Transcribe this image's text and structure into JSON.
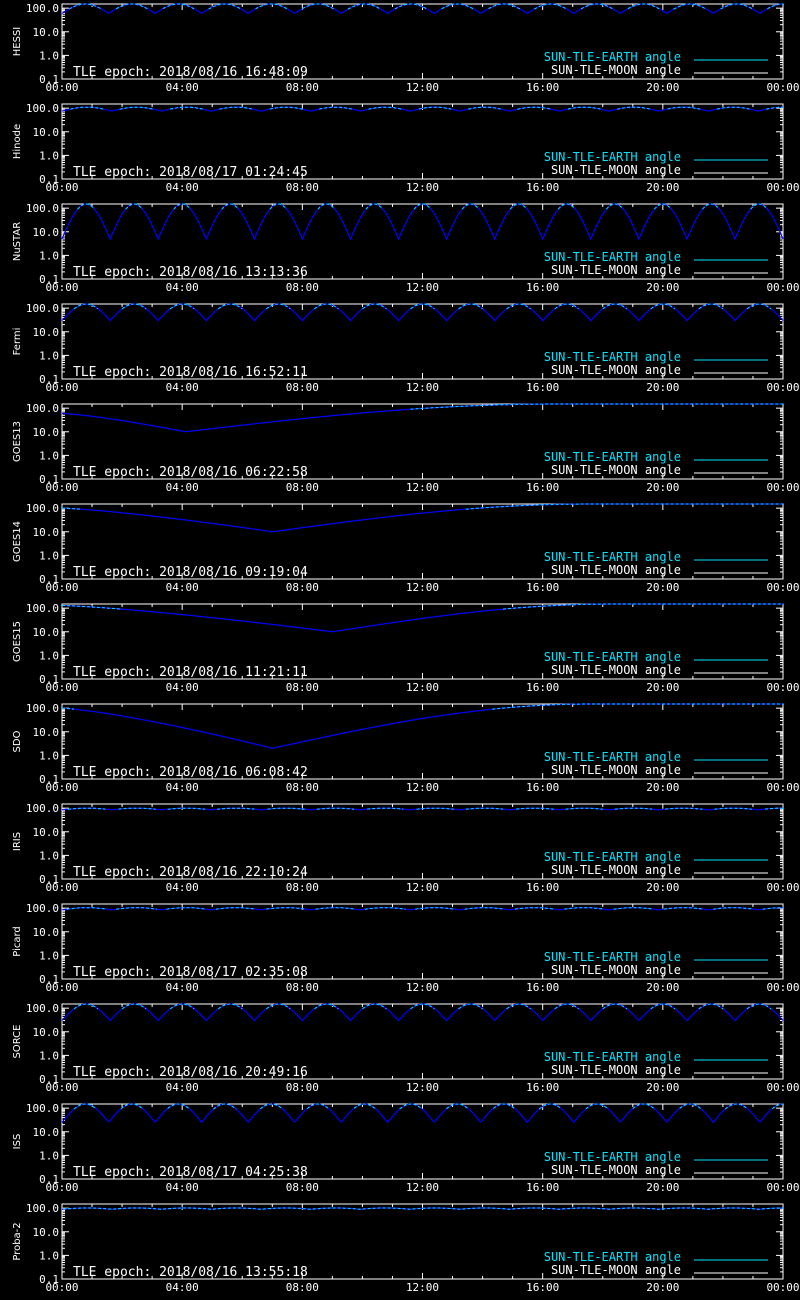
{
  "colors": {
    "background": "#000000",
    "axes": "#ffffff",
    "sun_earth": "#00e5ff",
    "sun_moon": "#ffffff",
    "curve": "#0000ff"
  },
  "chart_data": {
    "type": "line",
    "y_scale": "log",
    "y_ticks": [
      "100.0",
      "10.0",
      "1.0",
      "0.1"
    ],
    "x_ticks": [
      "00:00",
      "04:00",
      "08:00",
      "12:00",
      "16:00",
      "20:00",
      "00:00"
    ],
    "legend": [
      "SUN-TLE-EARTH angle",
      "SUN-TLE-MOON angle"
    ],
    "legend_position": "bottom-right",
    "panels": [
      {
        "name": "HESSI",
        "epoch": "TLE epoch: 2018/08/16 16:48:09",
        "pattern": "orbit",
        "n_orbits": 15.5,
        "ymin": 60,
        "ymax": 150
      },
      {
        "name": "Hinode",
        "epoch": "TLE epoch: 2018/08/17 01:24:45",
        "pattern": "orbit",
        "n_orbits": 14.5,
        "ymin": 75,
        "ymax": 110
      },
      {
        "name": "NuSTAR",
        "epoch": "TLE epoch: 2018/08/16 13:13:36",
        "pattern": "orbit",
        "n_orbits": 15,
        "ymin": 5,
        "ymax": 150
      },
      {
        "name": "Fermi",
        "epoch": "TLE epoch: 2018/08/16 16:52:11",
        "pattern": "orbit",
        "n_orbits": 15,
        "ymin": 30,
        "ymax": 150
      },
      {
        "name": "GOES13",
        "epoch": "TLE epoch: 2018/08/16 06:22:58",
        "pattern": "geo",
        "min_hour": 4.1,
        "min_value": 10,
        "start_value": 60,
        "max_value": 150
      },
      {
        "name": "GOES14",
        "epoch": "TLE epoch: 2018/08/16 09:19:04",
        "pattern": "geo",
        "min_hour": 7.0,
        "min_value": 10,
        "start_value": 100,
        "max_value": 150
      },
      {
        "name": "GOES15",
        "epoch": "TLE epoch: 2018/08/16 11:21:11",
        "pattern": "geo",
        "min_hour": 9.0,
        "min_value": 10,
        "start_value": 130,
        "max_value": 150
      },
      {
        "name": "SDO",
        "epoch": "TLE epoch: 2018/08/16 06:08:42",
        "pattern": "geo",
        "min_hour": 7.0,
        "min_value": 2.0,
        "start_value": 100,
        "max_value": 150
      },
      {
        "name": "IRIS",
        "epoch": "TLE epoch: 2018/08/16 22:10:24",
        "pattern": "orbit",
        "n_orbits": 14.5,
        "ymin": 85,
        "ymax": 100
      },
      {
        "name": "Picard",
        "epoch": "TLE epoch: 2018/08/17 02:35:08",
        "pattern": "orbit",
        "n_orbits": 14.5,
        "ymin": 85,
        "ymax": 105
      },
      {
        "name": "SORCE",
        "epoch": "TLE epoch: 2018/08/16 20:49:16",
        "pattern": "orbit",
        "n_orbits": 15,
        "ymin": 30,
        "ymax": 150
      },
      {
        "name": "ISS",
        "epoch": "TLE epoch: 2018/08/17 04:25:38",
        "pattern": "orbit",
        "n_orbits": 15.5,
        "ymin": 25,
        "ymax": 150
      },
      {
        "name": "Proba-2",
        "epoch": "TLE epoch: 2018/08/16 13:55:18",
        "pattern": "orbit",
        "n_orbits": 14.5,
        "ymin": 90,
        "ymax": 102
      }
    ]
  }
}
